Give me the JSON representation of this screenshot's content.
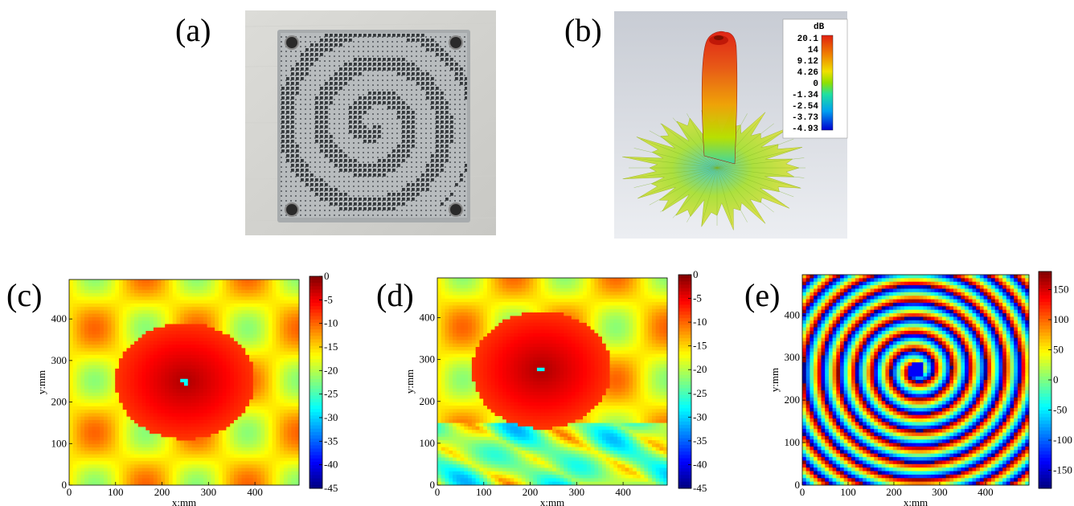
{
  "figure": {
    "labels": {
      "a": "(a)",
      "b": "(b)",
      "c": "(c)",
      "d": "(d)",
      "e": "(e)"
    }
  },
  "panel_b": {
    "legend_title": "dB",
    "legend_ticks": [
      "20.1",
      "14",
      "9.12",
      "4.26",
      "0",
      "-1.34",
      "-2.54",
      "-3.73",
      "-4.93"
    ],
    "colors": [
      "#e02010",
      "#f08000",
      "#f0e000",
      "#90e000",
      "#20e0a0",
      "#00a0f0",
      "#0000d0"
    ]
  },
  "chart_data": [
    {
      "type": "heatmap",
      "panel": "c",
      "xlabel": "x:mm",
      "ylabel": "y:mm",
      "x_ticks": [
        "0",
        "100",
        "200",
        "300",
        "400"
      ],
      "y_ticks": [
        "0",
        "100",
        "200",
        "300",
        "400"
      ],
      "xlim": [
        0,
        495
      ],
      "ylim": [
        0,
        495
      ],
      "colorbar_ticks": [
        "0",
        "-5",
        "-10",
        "-15",
        "-20",
        "-25",
        "-30",
        "-35",
        "-40",
        "-45"
      ],
      "colorbar_range": [
        -45,
        0
      ],
      "peak_center": [
        250,
        250
      ],
      "colormap": "jet"
    },
    {
      "type": "heatmap",
      "panel": "d",
      "xlabel": "x:mm",
      "ylabel": "y:mm",
      "x_ticks": [
        "0",
        "100",
        "200",
        "300",
        "400"
      ],
      "y_ticks": [
        "0",
        "100",
        "200",
        "300",
        "400"
      ],
      "xlim": [
        0,
        495
      ],
      "ylim": [
        0,
        495
      ],
      "colorbar_ticks": [
        "0",
        "-5",
        "-10",
        "-15",
        "-20",
        "-25",
        "-30",
        "-35",
        "-40",
        "-45"
      ],
      "colorbar_range": [
        -45,
        0
      ],
      "peak_center": [
        225,
        275
      ],
      "colormap": "jet"
    },
    {
      "type": "heatmap",
      "panel": "e",
      "xlabel": "x:mm",
      "ylabel": "y:mm",
      "x_ticks": [
        "0",
        "100",
        "200",
        "300",
        "400"
      ],
      "y_ticks": [
        "0",
        "100",
        "200",
        "300",
        "400"
      ],
      "xlim": [
        0,
        495
      ],
      "ylim": [
        0,
        495
      ],
      "colorbar_ticks": [
        "150",
        "100",
        "50",
        "0",
        "-50",
        "-100",
        "-150"
      ],
      "colorbar_range": [
        -180,
        180
      ],
      "spiral_center": [
        250,
        270
      ],
      "colormap": "jet"
    }
  ]
}
